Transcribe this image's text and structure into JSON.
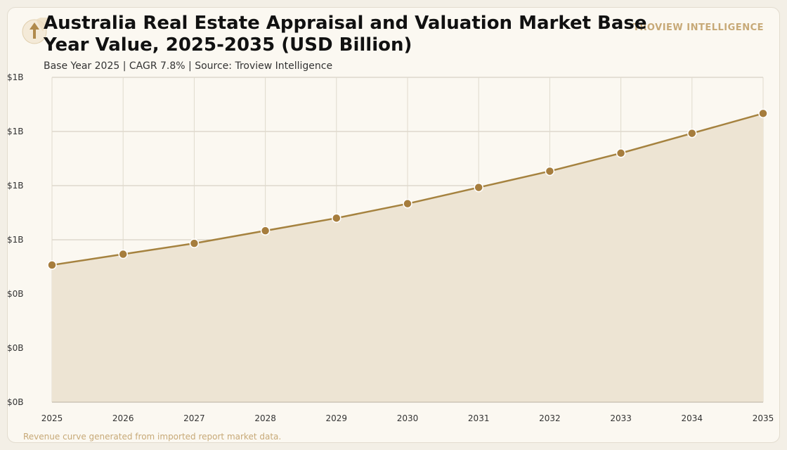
{
  "header": {
    "title": "Australia Real Estate Appraisal and Valuation Market Base Year Value, 2025-2035 (USD Billion)",
    "subtitle": "Base Year 2025 | CAGR 7.8% | Source: Troview Intelligence",
    "brand": "TROVIEW INTELLIGENCE",
    "logo_icon": "upward-arrow-icon"
  },
  "footer": {
    "note": "Revenue curve generated from imported report market data."
  },
  "colors": {
    "line": "#a5823f",
    "marker": "#a67d3d",
    "area": "#ede4d3",
    "grid": "#cfc8ba"
  },
  "chart_data": {
    "type": "area",
    "title": "Australia Real Estate Appraisal and Valuation Market Base Year Value, 2025-2035 (USD Billion)",
    "x": [
      "2025",
      "2026",
      "2027",
      "2028",
      "2029",
      "2030",
      "2031",
      "2032",
      "2033",
      "2034",
      "2035"
    ],
    "series": [
      {
        "values": [
          0.76,
          0.82,
          0.88,
          0.95,
          1.02,
          1.1,
          1.19,
          1.28,
          1.38,
          1.49,
          1.6
        ]
      }
    ],
    "y_tick_labels": [
      "$0B",
      "$0B",
      "$0B",
      "$1B",
      "$1B",
      "$1B",
      "$1B"
    ],
    "ylim": [
      0,
      1.8
    ],
    "grid": true,
    "legend": "none",
    "markers": true
  }
}
